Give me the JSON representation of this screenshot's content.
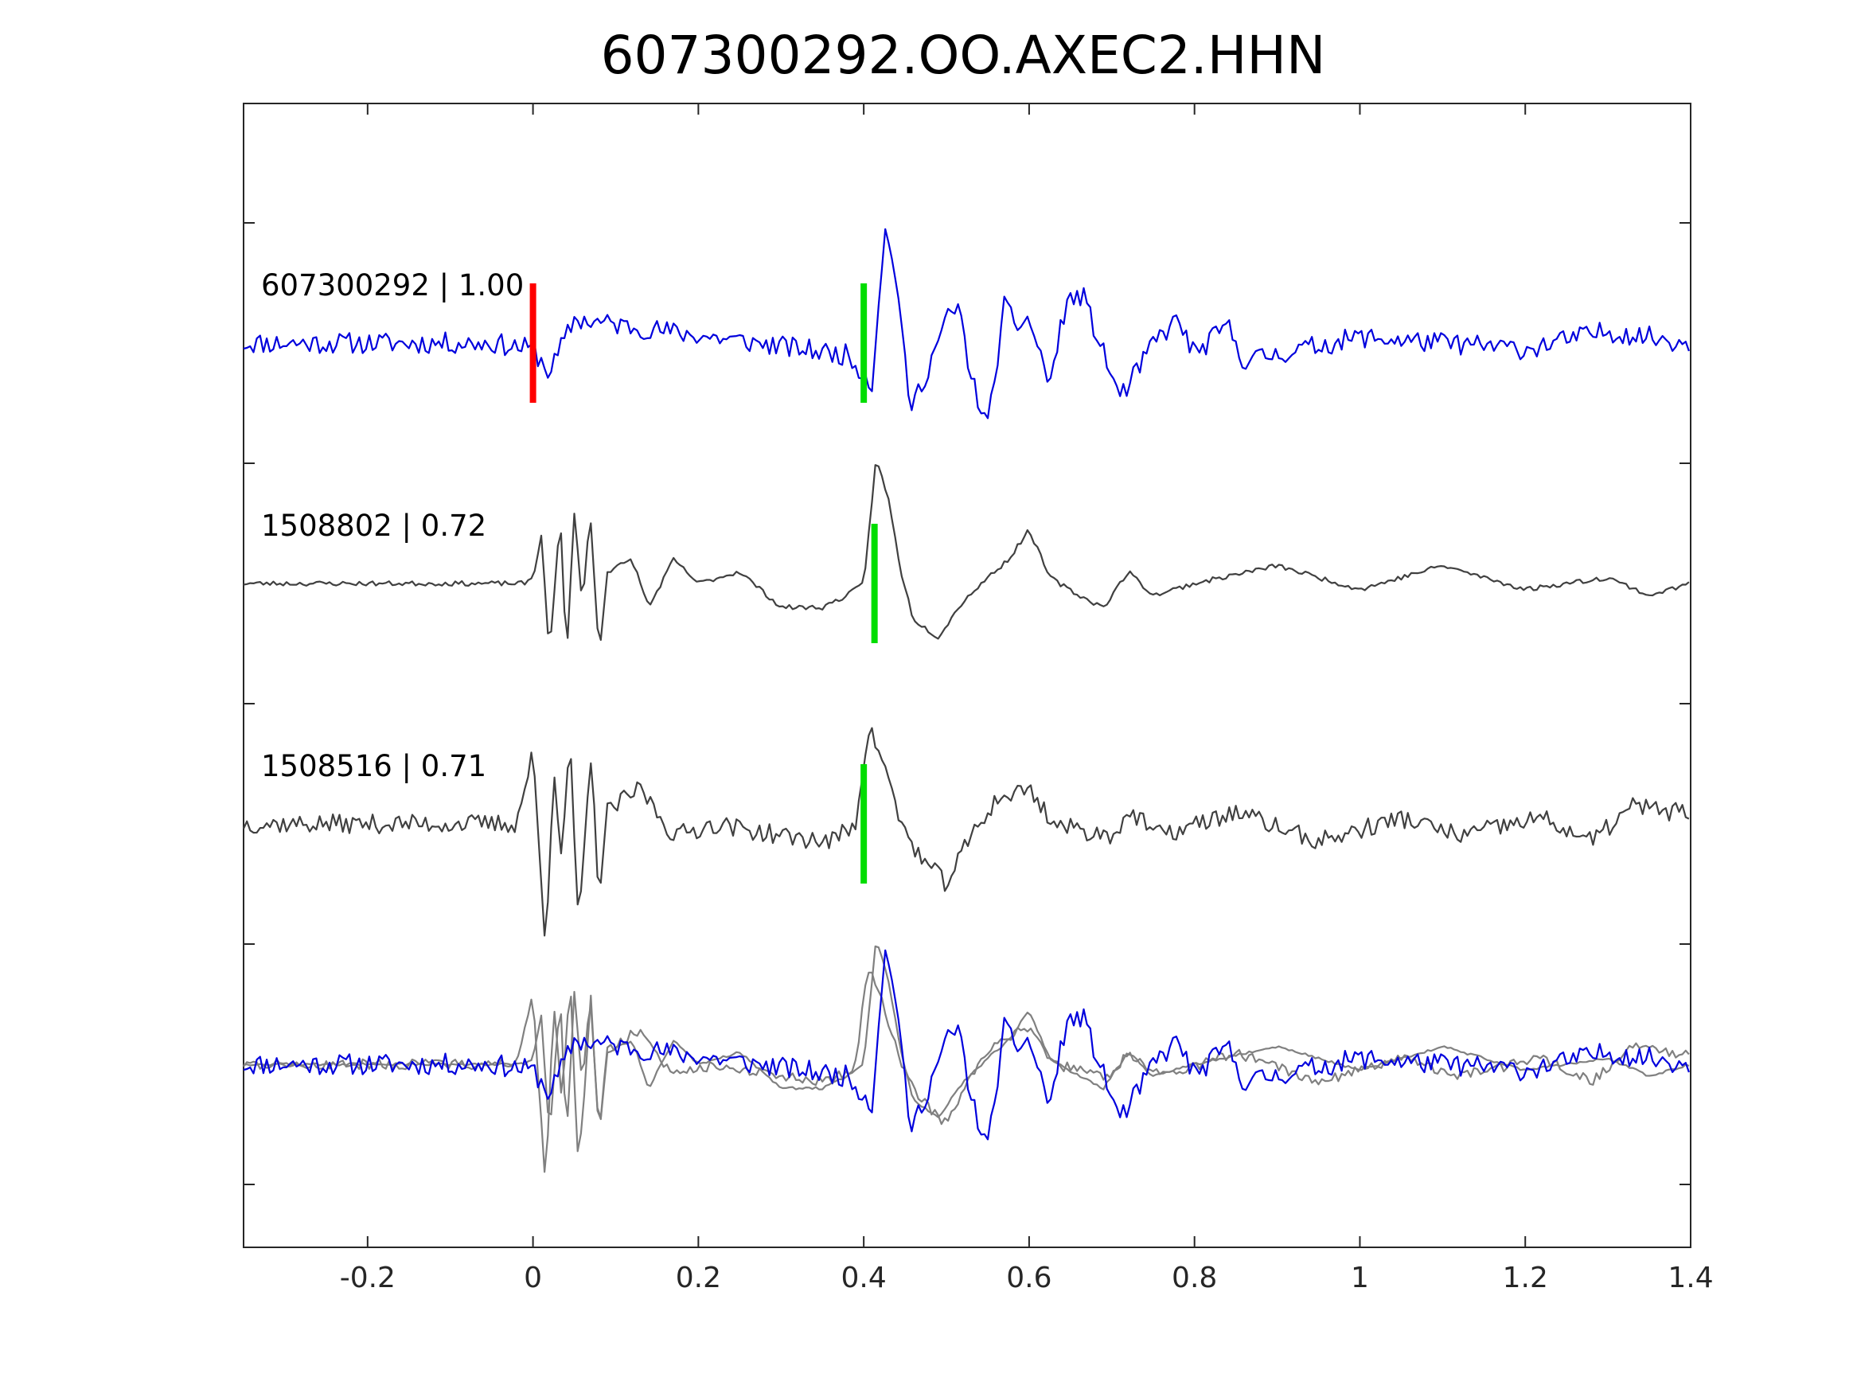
{
  "chart_data": {
    "type": "line",
    "title": "607300292.OO.AXEC2.HHN",
    "xlim": [
      -0.35,
      1.4
    ],
    "x_ticks": [
      -0.2,
      0,
      0.2,
      0.4,
      0.6,
      0.8,
      1,
      1.2,
      1.4
    ],
    "x_tick_labels": [
      "-0.2",
      "0",
      "0.2",
      "0.4",
      "0.6",
      "0.8",
      "1",
      "1.2",
      "1.4"
    ],
    "xlabel": "",
    "ylabel": "",
    "grid": false,
    "colors": {
      "target": "#0000dd",
      "template": "#404040",
      "overlay_template": "#808080",
      "origin_marker": "#ff0000",
      "pick_marker": "#00dd00"
    },
    "traces": [
      {
        "label": "607300292 | 1.00",
        "color": "target",
        "noise_amp": 0.09,
        "markers": [
          {
            "x": 0.0,
            "color": "origin_marker"
          },
          {
            "x": 0.4,
            "color": "pick_marker"
          }
        ],
        "keypoints": [
          [
            -0.35,
            0.0
          ],
          [
            -0.05,
            0.0
          ],
          [
            0.0,
            -0.05
          ],
          [
            0.02,
            -0.25
          ],
          [
            0.05,
            0.2
          ],
          [
            0.38,
            -0.1
          ],
          [
            0.4,
            -0.25
          ],
          [
            0.41,
            -0.35
          ],
          [
            0.425,
            0.95
          ],
          [
            0.44,
            0.55
          ],
          [
            0.455,
            -0.55
          ],
          [
            0.47,
            -0.35
          ],
          [
            0.5,
            0.2
          ],
          [
            0.515,
            0.3
          ],
          [
            0.53,
            -0.3
          ],
          [
            0.55,
            -0.7
          ],
          [
            0.57,
            0.3
          ],
          [
            0.585,
            0.15
          ],
          [
            0.6,
            0.2
          ],
          [
            0.625,
            -0.35
          ],
          [
            0.645,
            0.35
          ],
          [
            0.665,
            0.4
          ],
          [
            0.685,
            0.0
          ],
          [
            0.71,
            -0.45
          ],
          [
            0.73,
            -0.25
          ],
          [
            0.75,
            0.0
          ],
          [
            0.78,
            0.2
          ],
          [
            0.8,
            -0.1
          ],
          [
            0.84,
            0.15
          ],
          [
            0.86,
            -0.15
          ],
          [
            1.0,
            0.05
          ],
          [
            1.2,
            -0.05
          ],
          [
            1.3,
            0.1
          ],
          [
            1.4,
            0.0
          ]
        ]
      },
      {
        "label": "1508802 | 0.72",
        "color": "template",
        "noise_amp": 0.02,
        "markers": [
          {
            "x": 0.413,
            "color": "pick_marker"
          }
        ],
        "keypoints": [
          [
            -0.35,
            0.0
          ],
          [
            -0.01,
            0.0
          ],
          [
            0.0,
            0.05
          ],
          [
            0.01,
            0.4
          ],
          [
            0.02,
            -0.6
          ],
          [
            0.03,
            0.3
          ],
          [
            0.035,
            0.45
          ],
          [
            0.04,
            -0.7
          ],
          [
            0.05,
            0.6
          ],
          [
            0.06,
            -0.2
          ],
          [
            0.065,
            0.3
          ],
          [
            0.07,
            0.5
          ],
          [
            0.08,
            -0.6
          ],
          [
            0.09,
            0.1
          ],
          [
            0.12,
            0.2
          ],
          [
            0.14,
            -0.2
          ],
          [
            0.17,
            0.2
          ],
          [
            0.2,
            0.0
          ],
          [
            0.25,
            0.1
          ],
          [
            0.3,
            -0.2
          ],
          [
            0.35,
            -0.2
          ],
          [
            0.38,
            -0.1
          ],
          [
            0.4,
            0.0
          ],
          [
            0.415,
            1.05
          ],
          [
            0.43,
            0.7
          ],
          [
            0.445,
            0.1
          ],
          [
            0.46,
            -0.3
          ],
          [
            0.49,
            -0.45
          ],
          [
            0.52,
            -0.15
          ],
          [
            0.55,
            0.05
          ],
          [
            0.575,
            0.2
          ],
          [
            0.6,
            0.45
          ],
          [
            0.625,
            0.05
          ],
          [
            0.66,
            -0.1
          ],
          [
            0.69,
            -0.2
          ],
          [
            0.72,
            0.1
          ],
          [
            0.75,
            -0.1
          ],
          [
            0.8,
            0.0
          ],
          [
            0.9,
            0.15
          ],
          [
            1.0,
            -0.05
          ],
          [
            1.1,
            0.15
          ],
          [
            1.2,
            -0.05
          ],
          [
            1.3,
            0.05
          ],
          [
            1.35,
            -0.1
          ],
          [
            1.4,
            0.0
          ]
        ]
      },
      {
        "label": "1508516 | 0.71",
        "color": "template",
        "noise_amp": 0.08,
        "markers": [
          {
            "x": 0.4,
            "color": "pick_marker"
          }
        ],
        "keypoints": [
          [
            -0.35,
            0.0
          ],
          [
            -0.02,
            0.0
          ],
          [
            0.0,
            0.6
          ],
          [
            0.015,
            -1.05
          ],
          [
            0.025,
            0.5
          ],
          [
            0.035,
            -0.3
          ],
          [
            0.045,
            0.7
          ],
          [
            0.055,
            -0.9
          ],
          [
            0.07,
            0.55
          ],
          [
            0.08,
            -0.6
          ],
          [
            0.09,
            0.1
          ],
          [
            0.13,
            0.3
          ],
          [
            0.17,
            -0.1
          ],
          [
            0.22,
            0.0
          ],
          [
            0.3,
            -0.1
          ],
          [
            0.36,
            -0.15
          ],
          [
            0.39,
            0.0
          ],
          [
            0.405,
            0.8
          ],
          [
            0.42,
            0.6
          ],
          [
            0.445,
            0.0
          ],
          [
            0.47,
            -0.3
          ],
          [
            0.5,
            -0.5
          ],
          [
            0.53,
            -0.1
          ],
          [
            0.56,
            0.2
          ],
          [
            0.6,
            0.3
          ],
          [
            0.63,
            0.0
          ],
          [
            0.66,
            -0.05
          ],
          [
            0.7,
            -0.1
          ],
          [
            0.72,
            0.1
          ],
          [
            0.76,
            -0.1
          ],
          [
            0.85,
            0.1
          ],
          [
            0.95,
            -0.15
          ],
          [
            1.05,
            0.05
          ],
          [
            1.12,
            -0.1
          ],
          [
            1.22,
            0.05
          ],
          [
            1.28,
            -0.15
          ],
          [
            1.33,
            0.15
          ],
          [
            1.38,
            0.1
          ],
          [
            1.4,
            0.1
          ]
        ]
      }
    ],
    "overlay": {
      "noise_scale": 0.55,
      "template_color": "overlay_template",
      "target_color": "target",
      "note": "bottom panel overlays the two templates (gray) and the target trace (blue)"
    }
  }
}
